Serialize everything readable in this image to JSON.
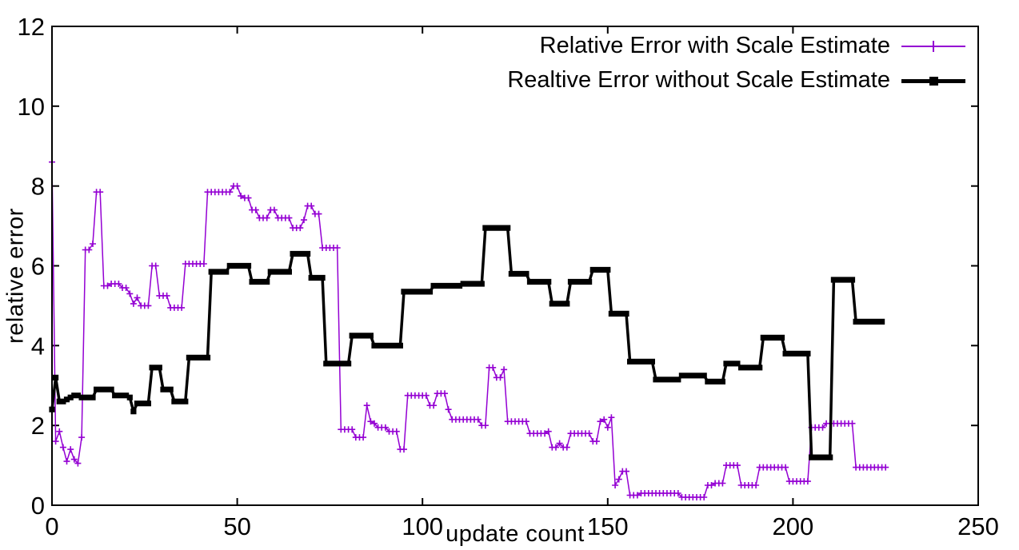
{
  "chart_data": {
    "type": "line",
    "title": "",
    "xlabel": "update count",
    "ylabel": "relative error",
    "xlim": [
      0,
      250
    ],
    "ylim": [
      0,
      12
    ],
    "xticks": [
      0,
      50,
      100,
      150,
      200,
      250
    ],
    "yticks": [
      0,
      2,
      4,
      6,
      8,
      10,
      12
    ],
    "grid": false,
    "legend_position": "top-right-inside",
    "background": "#ffffff",
    "frame_color": "#000000",
    "tick_style": "inward-mirrored",
    "marker_every_x": 1,
    "series": [
      {
        "name": "Relative Error with Scale Estimate",
        "color": "#9400d3",
        "marker": "plus",
        "line_width": 1.5,
        "plateaus_x0_x1_y": [
          [
            0,
            0,
            8.6
          ],
          [
            1,
            1,
            1.6
          ],
          [
            2,
            2,
            1.85
          ],
          [
            3,
            3,
            1.45
          ],
          [
            4,
            4,
            1.1
          ],
          [
            5,
            5,
            1.4
          ],
          [
            6,
            6,
            1.15
          ],
          [
            7,
            7,
            1.05
          ],
          [
            8,
            8,
            1.7
          ],
          [
            9,
            10,
            6.4
          ],
          [
            11,
            11,
            6.55
          ],
          [
            12,
            13,
            7.85
          ],
          [
            14,
            15,
            5.5
          ],
          [
            16,
            18,
            5.55
          ],
          [
            19,
            20,
            5.45
          ],
          [
            21,
            21,
            5.3
          ],
          [
            22,
            22,
            5.05
          ],
          [
            23,
            23,
            5.2
          ],
          [
            24,
            26,
            5.0
          ],
          [
            27,
            28,
            6.0
          ],
          [
            29,
            31,
            5.25
          ],
          [
            32,
            35,
            4.95
          ],
          [
            36,
            41,
            6.05
          ],
          [
            42,
            48,
            7.85
          ],
          [
            49,
            50,
            8.0
          ],
          [
            51,
            51,
            7.75
          ],
          [
            52,
            53,
            7.7
          ],
          [
            54,
            55,
            7.4
          ],
          [
            56,
            58,
            7.2
          ],
          [
            59,
            60,
            7.4
          ],
          [
            61,
            64,
            7.2
          ],
          [
            65,
            67,
            6.95
          ],
          [
            68,
            68,
            7.15
          ],
          [
            69,
            70,
            7.5
          ],
          [
            71,
            72,
            7.3
          ],
          [
            73,
            77,
            6.45
          ],
          [
            78,
            81,
            1.9
          ],
          [
            82,
            84,
            1.7
          ],
          [
            85,
            85,
            2.5
          ],
          [
            86,
            86,
            2.1
          ],
          [
            87,
            87,
            2.05
          ],
          [
            88,
            90,
            1.95
          ],
          [
            91,
            93,
            1.85
          ],
          [
            94,
            95,
            1.4
          ],
          [
            96,
            101,
            2.75
          ],
          [
            102,
            103,
            2.5
          ],
          [
            104,
            106,
            2.8
          ],
          [
            107,
            107,
            2.4
          ],
          [
            108,
            115,
            2.15
          ],
          [
            116,
            117,
            2.0
          ],
          [
            118,
            119,
            3.45
          ],
          [
            120,
            121,
            3.2
          ],
          [
            122,
            122,
            3.4
          ],
          [
            123,
            128,
            2.1
          ],
          [
            129,
            133,
            1.8
          ],
          [
            134,
            134,
            1.85
          ],
          [
            135,
            136,
            1.45
          ],
          [
            137,
            137,
            1.55
          ],
          [
            138,
            139,
            1.45
          ],
          [
            140,
            145,
            1.8
          ],
          [
            146,
            147,
            1.6
          ],
          [
            148,
            148,
            2.1
          ],
          [
            149,
            149,
            2.15
          ],
          [
            150,
            150,
            1.95
          ],
          [
            151,
            151,
            2.2
          ],
          [
            152,
            152,
            0.5
          ],
          [
            153,
            153,
            0.65
          ],
          [
            154,
            155,
            0.85
          ],
          [
            156,
            158,
            0.25
          ],
          [
            159,
            169,
            0.3
          ],
          [
            170,
            176,
            0.2
          ],
          [
            177,
            178,
            0.5
          ],
          [
            179,
            181,
            0.55
          ],
          [
            182,
            185,
            1.0
          ],
          [
            186,
            190,
            0.5
          ],
          [
            191,
            198,
            0.95
          ],
          [
            199,
            204,
            0.6
          ],
          [
            205,
            208,
            1.95
          ],
          [
            209,
            216,
            2.05
          ],
          [
            217,
            225,
            0.95
          ]
        ]
      },
      {
        "name": "Realtive Error without Scale Estimate",
        "color": "#000000",
        "marker": "filled-square",
        "line_width": 3.5,
        "plateaus_x0_x1_y": [
          [
            0,
            0,
            2.4
          ],
          [
            1,
            1,
            3.2
          ],
          [
            2,
            3,
            2.6
          ],
          [
            4,
            4,
            2.65
          ],
          [
            5,
            5,
            2.7
          ],
          [
            6,
            7,
            2.75
          ],
          [
            8,
            11,
            2.7
          ],
          [
            12,
            16,
            2.9
          ],
          [
            17,
            20,
            2.75
          ],
          [
            21,
            21,
            2.7
          ],
          [
            22,
            22,
            2.35
          ],
          [
            23,
            26,
            2.55
          ],
          [
            27,
            29,
            3.45
          ],
          [
            30,
            32,
            2.9
          ],
          [
            33,
            36,
            2.6
          ],
          [
            37,
            42,
            3.7
          ],
          [
            43,
            47,
            5.85
          ],
          [
            48,
            53,
            6.0
          ],
          [
            54,
            58,
            5.6
          ],
          [
            59,
            64,
            5.85
          ],
          [
            65,
            69,
            6.3
          ],
          [
            70,
            73,
            5.7
          ],
          [
            74,
            80,
            3.55
          ],
          [
            81,
            86,
            4.25
          ],
          [
            87,
            94,
            4.0
          ],
          [
            95,
            102,
            5.35
          ],
          [
            103,
            110,
            5.5
          ],
          [
            111,
            116,
            5.55
          ],
          [
            117,
            123,
            6.95
          ],
          [
            124,
            128,
            5.8
          ],
          [
            129,
            134,
            5.6
          ],
          [
            135,
            139,
            5.05
          ],
          [
            140,
            145,
            5.6
          ],
          [
            146,
            150,
            5.9
          ],
          [
            151,
            155,
            4.8
          ],
          [
            156,
            162,
            3.6
          ],
          [
            163,
            169,
            3.15
          ],
          [
            170,
            176,
            3.25
          ],
          [
            177,
            181,
            3.1
          ],
          [
            182,
            185,
            3.55
          ],
          [
            186,
            191,
            3.45
          ],
          [
            192,
            197,
            4.2
          ],
          [
            198,
            204,
            3.8
          ],
          [
            205,
            210,
            1.2
          ],
          [
            211,
            216,
            5.65
          ],
          [
            217,
            224,
            4.6
          ]
        ]
      }
    ]
  }
}
